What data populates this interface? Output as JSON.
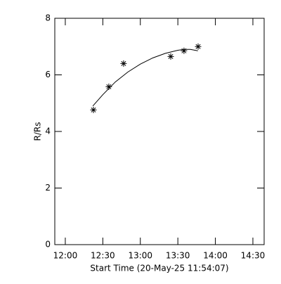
{
  "chart_data": {
    "type": "scatter",
    "xlabel": "Start Time (20-May-25 11:54:07)",
    "ylabel": "R/Rs",
    "color": "#000000",
    "series": [
      {
        "marker": "asterisk",
        "x": [
          742.5,
          754.8,
          766.6,
          804.3,
          814.9,
          826.2
        ],
        "values": [
          4.76,
          5.58,
          6.4,
          6.65,
          6.85,
          7.0
        ]
      }
    ],
    "fit": {
      "x": [
        742,
        750,
        760,
        770,
        780,
        790,
        800,
        810,
        815,
        820,
        826
      ],
      "values": [
        4.9,
        5.3,
        5.75,
        6.1,
        6.38,
        6.6,
        6.76,
        6.87,
        6.9,
        6.9,
        6.85
      ]
    },
    "xlim": [
      711.6,
      879
    ],
    "xticks": [
      {
        "value": 720,
        "label": "12:00"
      },
      {
        "value": 750,
        "label": "12:30"
      },
      {
        "value": 780,
        "label": "13:00"
      },
      {
        "value": 810,
        "label": "13:30"
      },
      {
        "value": 840,
        "label": "14:00"
      },
      {
        "value": 870,
        "label": "14:30"
      }
    ],
    "ylim": [
      0,
      8
    ],
    "yticks": [
      0,
      2,
      4,
      6,
      8
    ]
  }
}
